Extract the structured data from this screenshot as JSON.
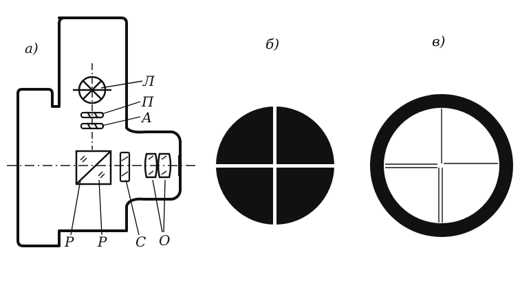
{
  "panels": {
    "a": {
      "label": "а)"
    },
    "b": {
      "label": "б)"
    },
    "c": {
      "label": "в)"
    }
  },
  "callouts": {
    "lamp": "Л",
    "plate": "П",
    "aperture": "А",
    "prism_left": "Р",
    "prism_right": "Р",
    "lens_c": "С",
    "objective": "О"
  },
  "colors": {
    "ink": "#111111",
    "background": "#ffffff"
  }
}
